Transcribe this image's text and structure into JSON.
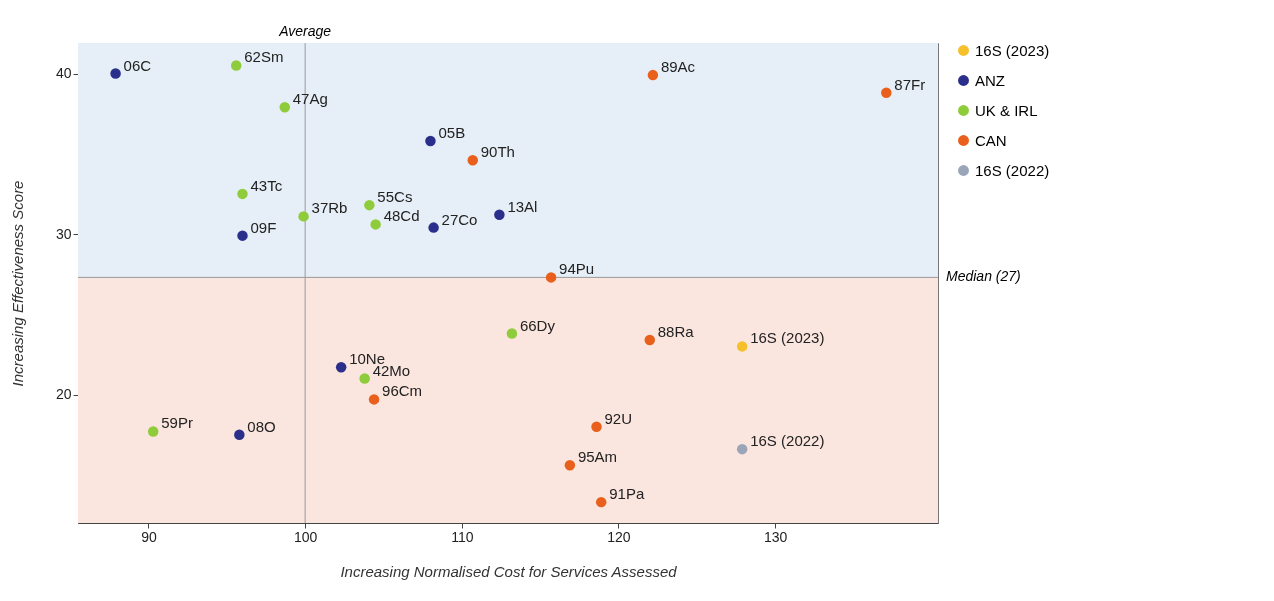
{
  "chart_data": {
    "type": "scatter",
    "xlabel": "Increasing Normalised Cost for Services Assessed",
    "ylabel": "Increasing Effectiveness Score",
    "xlim": [
      85.5,
      140.4
    ],
    "ylim": [
      12,
      41.9
    ],
    "xticks": [
      90,
      100,
      110,
      120,
      130
    ],
    "yticks": [
      20,
      30,
      40
    ],
    "grid": false,
    "legend": "right",
    "marker": "circle",
    "series": [
      {
        "name": "16S (2023)",
        "color": "#f5c02a",
        "x": [
          127.9
        ],
        "values": [
          23.0
        ]
      },
      {
        "name": "ANZ",
        "color": "#2b2f8c",
        "x": [
          87.9,
          108.0,
          108.2,
          112.4,
          96.0,
          102.3,
          95.8
        ],
        "values": [
          40.0,
          35.8,
          30.4,
          31.2,
          29.9,
          21.7,
          17.5
        ]
      },
      {
        "name": "UK & IRL",
        "color": "#8fcc3b",
        "x": [
          95.6,
          98.7,
          96.0,
          104.1,
          99.9,
          104.5,
          113.2,
          103.8,
          90.3
        ],
        "values": [
          40.5,
          37.9,
          32.5,
          31.8,
          31.1,
          30.6,
          23.8,
          21.0,
          17.7
        ]
      },
      {
        "name": "CAN",
        "color": "#e8601c",
        "x": [
          110.7,
          122.2,
          137.1,
          115.7,
          122.0,
          104.4,
          118.6,
          116.9,
          118.9
        ],
        "values": [
          34.6,
          39.9,
          38.8,
          27.3,
          23.4,
          19.7,
          18.0,
          15.6,
          13.3
        ]
      },
      {
        "name": "16S (2022)",
        "color": "#9aa5b8",
        "x": [
          127.9
        ],
        "values": [
          16.6
        ]
      }
    ],
    "ref_lines": [
      {
        "axis": "x",
        "value": 100,
        "label": "Average",
        "color": "#999999"
      },
      {
        "axis": "y",
        "value": 27.3,
        "label": "Median (27)",
        "color": "#999999"
      }
    ],
    "bands": [
      {
        "axis": "y",
        "from": 27.3,
        "to": 41.9,
        "color": "#e6eff7"
      },
      {
        "axis": "y",
        "from": 12,
        "to": 27.3,
        "color": "#fbe6df"
      }
    ],
    "annotations": [
      {
        "text": "06C",
        "x": 87.9,
        "y": 40.0
      },
      {
        "text": "62Sm",
        "x": 95.6,
        "y": 40.5
      },
      {
        "text": "47Ag",
        "x": 98.7,
        "y": 37.9
      },
      {
        "text": "05B",
        "x": 108.0,
        "y": 35.8
      },
      {
        "text": "90Th",
        "x": 110.7,
        "y": 34.6
      },
      {
        "text": "89Ac",
        "x": 122.2,
        "y": 39.9
      },
      {
        "text": "87Fr",
        "x": 137.1,
        "y": 38.8
      },
      {
        "text": "43Tc",
        "x": 96.0,
        "y": 32.5
      },
      {
        "text": "55Cs",
        "x": 104.1,
        "y": 31.8
      },
      {
        "text": "37Rb",
        "x": 99.9,
        "y": 31.1
      },
      {
        "text": "48Cd",
        "x": 104.5,
        "y": 30.6
      },
      {
        "text": "27Co",
        "x": 108.2,
        "y": 30.4
      },
      {
        "text": "13Al",
        "x": 112.4,
        "y": 31.2
      },
      {
        "text": "09F",
        "x": 96.0,
        "y": 29.9
      },
      {
        "text": "94Pu",
        "x": 115.7,
        "y": 27.3
      },
      {
        "text": "66Dy",
        "x": 113.2,
        "y": 23.8
      },
      {
        "text": "88Ra",
        "x": 122.0,
        "y": 23.4
      },
      {
        "text": "16S (2023)",
        "x": 127.9,
        "y": 23.0
      },
      {
        "text": "10Ne",
        "x": 102.3,
        "y": 21.7
      },
      {
        "text": "42Mo",
        "x": 103.8,
        "y": 21.0
      },
      {
        "text": "96Cm",
        "x": 104.4,
        "y": 19.7
      },
      {
        "text": "59Pr",
        "x": 90.3,
        "y": 17.7
      },
      {
        "text": "08O",
        "x": 95.8,
        "y": 17.5
      },
      {
        "text": "92U",
        "x": 118.6,
        "y": 18.0
      },
      {
        "text": "95Am",
        "x": 116.9,
        "y": 15.6
      },
      {
        "text": "91Pa",
        "x": 118.9,
        "y": 13.3
      },
      {
        "text": "16S (2022)",
        "x": 127.9,
        "y": 16.6
      }
    ]
  }
}
